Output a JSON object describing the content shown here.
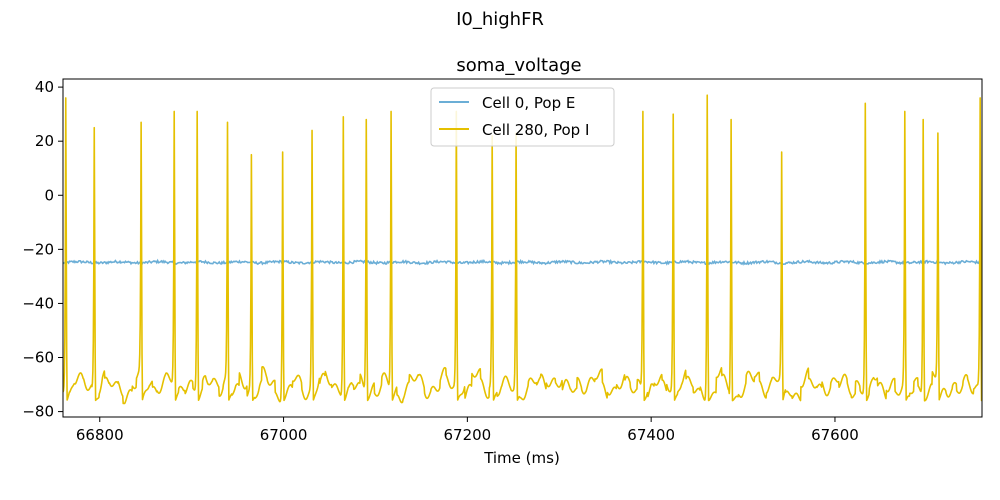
{
  "figure": {
    "suptitle": "I0_highFR"
  },
  "chart_data": {
    "type": "line",
    "title": "soma_voltage",
    "xlabel": "Time (ms)",
    "ylabel": "",
    "xlim": [
      66760,
      67760
    ],
    "ylim": [
      -82,
      43
    ],
    "xticks": [
      66800,
      67000,
      67200,
      67400,
      67600
    ],
    "yticks": [
      -80,
      -60,
      -40,
      -20,
      0,
      20,
      40
    ],
    "grid": false,
    "legend_position": "top-center",
    "series": [
      {
        "name": "Cell 0, Pop E",
        "color": "#6baed6",
        "baseline_mV": -24.8
      },
      {
        "name": "Cell 280, Pop I",
        "color": "#e5c000",
        "baseline_mV": -70,
        "spike_times_ms": [
          66763,
          66794,
          66845,
          66881,
          66906,
          66939,
          66965,
          66999,
          67031,
          67065,
          67090,
          67117,
          67188,
          67227,
          67253,
          67391,
          67424,
          67461,
          67487,
          67542,
          67633,
          67676,
          67696,
          67712,
          67758
        ],
        "spike_peaks_mV": [
          36,
          25,
          27,
          31,
          31,
          27,
          15,
          16,
          24,
          29,
          28,
          31,
          31,
          22,
          23,
          31,
          30,
          37,
          28,
          16,
          34,
          31,
          28,
          23,
          36
        ]
      }
    ]
  }
}
